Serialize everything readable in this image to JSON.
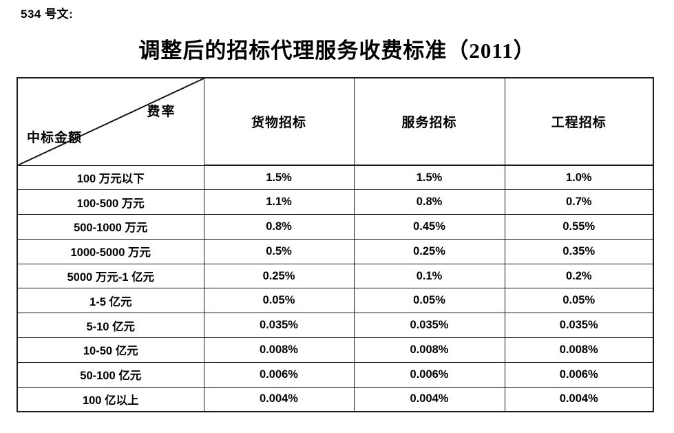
{
  "doc": {
    "doc_number": "534 号文:",
    "title": "调整后的招标代理服务收费标准（2011）"
  },
  "table": {
    "corner": {
      "top_right": "费率",
      "bottom_left": "中标金额"
    },
    "columns": [
      "货物招标",
      "服务招标",
      "工程招标"
    ],
    "rows": [
      {
        "label": "100 万元以下",
        "values": [
          "1.5%",
          "1.5%",
          "1.0%"
        ]
      },
      {
        "label": "100-500 万元",
        "values": [
          "1.1%",
          "0.8%",
          "0.7%"
        ]
      },
      {
        "label": "500-1000 万元",
        "values": [
          "0.8%",
          "0.45%",
          "0.55%"
        ]
      },
      {
        "label": "1000-5000 万元",
        "values": [
          "0.5%",
          "0.25%",
          "0.35%"
        ]
      },
      {
        "label": "5000 万元-1 亿元",
        "values": [
          "0.25%",
          "0.1%",
          "0.2%"
        ]
      },
      {
        "label": "1-5 亿元",
        "values": [
          "0.05%",
          "0.05%",
          "0.05%"
        ]
      },
      {
        "label": "5-10 亿元",
        "values": [
          "0.035%",
          "0.035%",
          "0.035%"
        ]
      },
      {
        "label": "10-50 亿元",
        "values": [
          "0.008%",
          "0.008%",
          "0.008%"
        ]
      },
      {
        "label": "50-100 亿元",
        "values": [
          "0.006%",
          "0.006%",
          "0.006%"
        ]
      },
      {
        "label": "100 亿以上",
        "values": [
          "0.004%",
          "0.004%",
          "0.004%"
        ]
      }
    ]
  },
  "colors": {
    "text": "#000000",
    "border": "#1a1a1a",
    "background": "#ffffff"
  }
}
